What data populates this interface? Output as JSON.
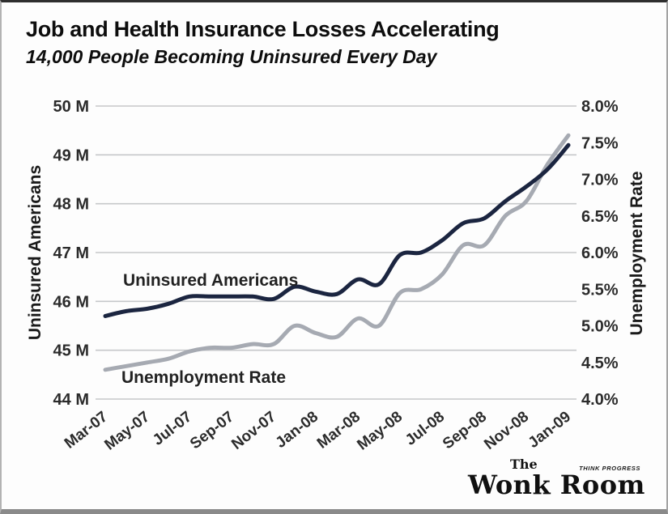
{
  "header": {
    "title": "Job and Health Insurance Losses Accelerating",
    "subtitle": "14,000 People Becoming Uninsured Every Day"
  },
  "chart_data": {
    "type": "line",
    "x": [
      "Mar-07",
      "Apr-07",
      "May-07",
      "Jun-07",
      "Jul-07",
      "Aug-07",
      "Sep-07",
      "Oct-07",
      "Nov-07",
      "Dec-07",
      "Jan-08",
      "Feb-08",
      "Mar-08",
      "Apr-08",
      "May-08",
      "Jun-08",
      "Jul-08",
      "Aug-08",
      "Sep-08",
      "Oct-08",
      "Nov-08",
      "Dec-08",
      "Jan-09"
    ],
    "x_tick_labels": [
      "Mar-07",
      "May-07",
      "Jul-07",
      "Sep-07",
      "Nov-07",
      "Jan-08",
      "Mar-08",
      "May-08",
      "Jul-08",
      "Sep-08",
      "Nov-08",
      "Jan-09"
    ],
    "series": [
      {
        "name": "Uninsured Americans",
        "axis": "left",
        "unit": "millions of people",
        "color": "#1b2540",
        "values": [
          45.7,
          45.8,
          45.85,
          45.95,
          46.1,
          46.1,
          46.1,
          46.1,
          46.05,
          46.3,
          46.2,
          46.15,
          46.45,
          46.35,
          46.95,
          47.0,
          47.25,
          47.6,
          47.7,
          48.05,
          48.35,
          48.7,
          49.2
        ]
      },
      {
        "name": "Unemployment Rate",
        "axis": "right",
        "unit": "percent",
        "color": "#a6aab2",
        "values": [
          4.4,
          4.45,
          4.5,
          4.55,
          4.65,
          4.7,
          4.7,
          4.75,
          4.75,
          5.0,
          4.9,
          4.85,
          5.1,
          5.0,
          5.45,
          5.5,
          5.7,
          6.1,
          6.1,
          6.5,
          6.7,
          7.2,
          7.6
        ]
      }
    ],
    "axes": {
      "left": {
        "title": "Uninsured Americans",
        "tick_labels": [
          "50 M",
          "49 M",
          "48 M",
          "47 M",
          "46 M",
          "45 M",
          "44 M"
        ],
        "min": 44,
        "max": 50
      },
      "right": {
        "title": "Unemployment Rate",
        "tick_labels": [
          "8.0%",
          "7.5%",
          "7.0%",
          "6.5%",
          "6.0%",
          "5.5%",
          "5.0%",
          "4.5%",
          "4.0%"
        ],
        "min": 4.0,
        "max": 8.0
      }
    },
    "grid": "horizontal",
    "legend_position": "labels-inside-plot",
    "annotations": [
      {
        "text": "Uninsured Americans"
      },
      {
        "text": "Unemployment Rate"
      }
    ]
  },
  "logo": {
    "the": "The",
    "name": "Wonk Room",
    "tagline": "THINK PROGRESS"
  },
  "colors": {
    "uninsured_line": "#1b2540",
    "unemployment_line": "#a6aab2",
    "gridline": "#c6c8ca",
    "tick_text": "#2b2b2b",
    "background": "#fdfdfd"
  }
}
